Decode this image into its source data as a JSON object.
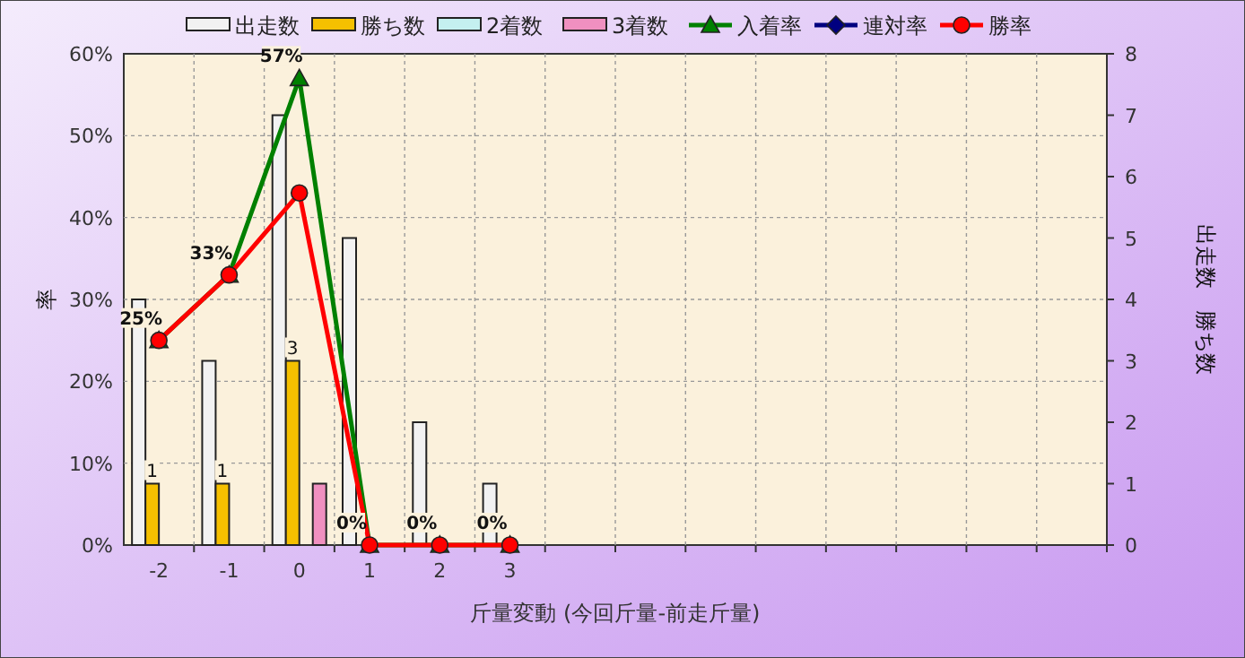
{
  "chart_data": {
    "type": "bar",
    "xlabel": "斤量変動 (今回斤量-前走斤量)",
    "ylabel": "率",
    "y2label": "出走数　勝ち数",
    "categories": [
      "-2",
      "-1",
      "0",
      "1",
      "2",
      "3",
      null,
      null,
      null,
      null,
      null,
      null,
      null,
      null
    ],
    "series": [
      {
        "name": "出走数",
        "axis": "y2",
        "color": "#f2f2f2",
        "values": [
          4,
          3,
          7,
          5,
          2,
          1,
          null,
          null,
          null,
          null,
          null,
          null,
          null,
          null
        ]
      },
      {
        "name": "勝ち数",
        "axis": "y2",
        "color": "#f5c000",
        "values": [
          1,
          1,
          3,
          0,
          0,
          0,
          null,
          null,
          null,
          null,
          null,
          null,
          null,
          null
        ],
        "value_labels": [
          "1",
          "1",
          "3",
          null,
          null,
          null,
          null,
          null,
          null,
          null,
          null,
          null,
          null,
          null
        ]
      },
      {
        "name": "2着数",
        "axis": "y2",
        "color": "#c4f0f0",
        "values": [
          0,
          0,
          0,
          0,
          0,
          0,
          null,
          null,
          null,
          null,
          null,
          null,
          null,
          null
        ]
      },
      {
        "name": "3着数",
        "axis": "y2",
        "color": "#f090c0",
        "values": [
          0,
          0,
          1,
          0,
          0,
          0,
          null,
          null,
          null,
          null,
          null,
          null,
          null,
          null
        ]
      },
      {
        "name": "入着率",
        "type": "line",
        "color": "#008000",
        "marker": "triangle",
        "values": [
          25,
          33,
          57,
          0,
          0,
          0,
          null,
          null,
          null,
          null,
          null,
          null,
          null,
          null
        ],
        "value_labels": [
          "25%",
          "33%",
          "57%",
          "0%",
          "0%",
          "0%",
          null,
          null,
          null,
          null,
          null,
          null,
          null,
          null
        ]
      },
      {
        "name": "連対率",
        "type": "line",
        "color": "#000080",
        "marker": "diamond",
        "values": [
          null,
          null,
          null,
          null,
          null,
          null,
          null,
          null,
          null,
          null,
          null,
          null,
          null,
          null
        ]
      },
      {
        "name": "勝率",
        "type": "line",
        "color": "#ff0000",
        "marker": "circle",
        "values": [
          25,
          33,
          43,
          0,
          0,
          0,
          null,
          null,
          null,
          null,
          null,
          null,
          null,
          null
        ]
      }
    ],
    "ylim": [
      0,
      60
    ],
    "yticks": [
      {
        "value": 0,
        "label": "0%"
      },
      {
        "value": 10,
        "label": "10%"
      },
      {
        "value": 20,
        "label": "20%"
      },
      {
        "value": 30,
        "label": "30%"
      },
      {
        "value": 40,
        "label": "40%"
      },
      {
        "value": 50,
        "label": "50%"
      },
      {
        "value": 60,
        "label": "60%"
      }
    ],
    "y2lim": [
      0,
      8
    ],
    "y2ticks": [
      0,
      1,
      2,
      3,
      4,
      5,
      6,
      7,
      8
    ],
    "grid": true,
    "legend": "top"
  }
}
